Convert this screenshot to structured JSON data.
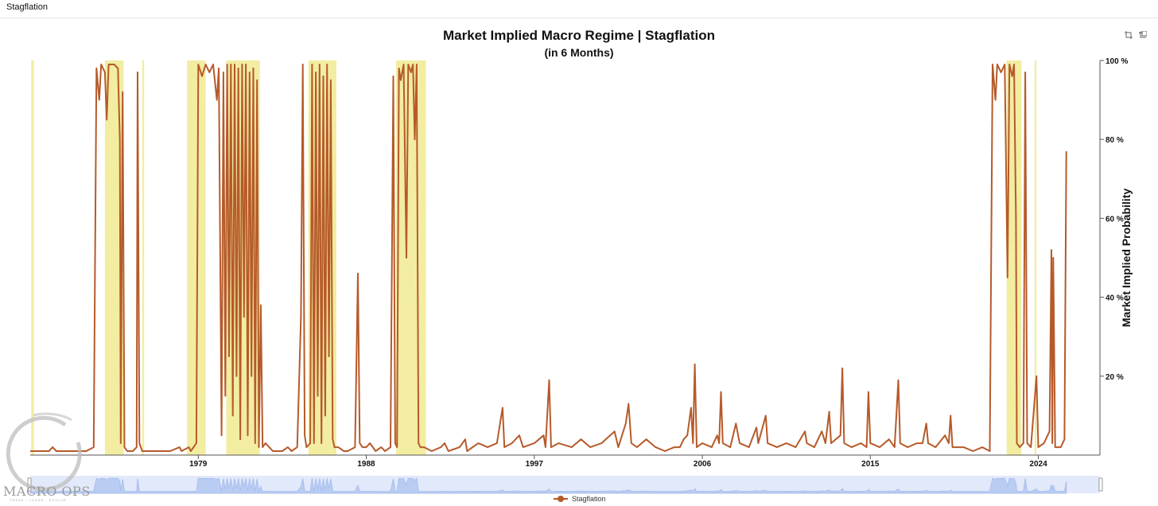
{
  "tab": {
    "label": "Stagflation"
  },
  "chart_data": {
    "type": "line",
    "title": "Market Implied Macro Regime | Stagflation",
    "subtitle": "(in 6 Months)",
    "ylabel": "Market Implied Probability",
    "ylim": [
      0,
      100
    ],
    "xlim": [
      1970,
      2027.3
    ],
    "x_tick_labels": [
      "1979",
      "1988",
      "1997",
      "2006",
      "2015",
      "2024"
    ],
    "y_tick_labels": [
      "20 %",
      "40 %",
      "60 %",
      "80 %",
      "100 %"
    ],
    "grid": false,
    "legend_position": "bottom-center",
    "series": [
      {
        "name": "Stagflation",
        "color": "#b65a2a",
        "points": [
          [
            1970.0,
            1
          ],
          [
            1970.5,
            1
          ],
          [
            1971.0,
            1
          ],
          [
            1971.2,
            2
          ],
          [
            1971.4,
            1
          ],
          [
            1971.8,
            1
          ],
          [
            1972.5,
            1
          ],
          [
            1973.0,
            1
          ],
          [
            1973.4,
            2
          ],
          [
            1973.55,
            98
          ],
          [
            1973.7,
            90
          ],
          [
            1973.8,
            99
          ],
          [
            1974.0,
            97
          ],
          [
            1974.1,
            85
          ],
          [
            1974.2,
            99
          ],
          [
            1974.5,
            99
          ],
          [
            1974.7,
            98
          ],
          [
            1974.8,
            80
          ],
          [
            1974.85,
            3
          ],
          [
            1974.95,
            92
          ],
          [
            1975.05,
            2
          ],
          [
            1975.2,
            1
          ],
          [
            1975.5,
            1
          ],
          [
            1975.7,
            2
          ],
          [
            1975.75,
            97
          ],
          [
            1975.85,
            3
          ],
          [
            1976.0,
            1
          ],
          [
            1976.5,
            1
          ],
          [
            1977.0,
            1
          ],
          [
            1977.5,
            1
          ],
          [
            1978.0,
            2
          ],
          [
            1978.1,
            1
          ],
          [
            1978.5,
            2
          ],
          [
            1978.6,
            1
          ],
          [
            1978.9,
            3
          ],
          [
            1979.0,
            99
          ],
          [
            1979.2,
            96
          ],
          [
            1979.4,
            99
          ],
          [
            1979.6,
            97
          ],
          [
            1979.8,
            99
          ],
          [
            1980.0,
            90
          ],
          [
            1980.1,
            98
          ],
          [
            1980.25,
            5
          ],
          [
            1980.35,
            97
          ],
          [
            1980.45,
            15
          ],
          [
            1980.55,
            99
          ],
          [
            1980.65,
            25
          ],
          [
            1980.75,
            99
          ],
          [
            1980.85,
            10
          ],
          [
            1980.95,
            99
          ],
          [
            1981.05,
            20
          ],
          [
            1981.15,
            98
          ],
          [
            1981.25,
            4
          ],
          [
            1981.35,
            99
          ],
          [
            1981.45,
            35
          ],
          [
            1981.55,
            99
          ],
          [
            1981.65,
            5
          ],
          [
            1981.75,
            97
          ],
          [
            1981.85,
            20
          ],
          [
            1981.95,
            98
          ],
          [
            1982.05,
            3
          ],
          [
            1982.15,
            95
          ],
          [
            1982.25,
            2
          ],
          [
            1982.35,
            38
          ],
          [
            1982.45,
            2
          ],
          [
            1982.6,
            3
          ],
          [
            1982.8,
            2
          ],
          [
            1983.0,
            1
          ],
          [
            1983.5,
            1
          ],
          [
            1983.8,
            2
          ],
          [
            1984.0,
            1
          ],
          [
            1984.3,
            2
          ],
          [
            1984.5,
            35
          ],
          [
            1984.6,
            99
          ],
          [
            1984.7,
            5
          ],
          [
            1984.8,
            2
          ],
          [
            1985.0,
            3
          ],
          [
            1985.1,
            99
          ],
          [
            1985.2,
            3
          ],
          [
            1985.3,
            97
          ],
          [
            1985.4,
            15
          ],
          [
            1985.5,
            99
          ],
          [
            1985.6,
            3
          ],
          [
            1985.7,
            96
          ],
          [
            1985.8,
            10
          ],
          [
            1985.9,
            99
          ],
          [
            1986.0,
            25
          ],
          [
            1986.1,
            95
          ],
          [
            1986.2,
            4
          ],
          [
            1986.3,
            2
          ],
          [
            1986.5,
            2
          ],
          [
            1986.8,
            1
          ],
          [
            1987.0,
            1
          ],
          [
            1987.4,
            2
          ],
          [
            1987.55,
            46
          ],
          [
            1987.65,
            3
          ],
          [
            1987.8,
            2
          ],
          [
            1988.0,
            2
          ],
          [
            1988.2,
            3
          ],
          [
            1988.5,
            1
          ],
          [
            1988.8,
            2
          ],
          [
            1989.0,
            1
          ],
          [
            1989.3,
            2
          ],
          [
            1989.45,
            96
          ],
          [
            1989.55,
            3
          ],
          [
            1989.65,
            2
          ],
          [
            1989.75,
            98
          ],
          [
            1989.85,
            95
          ],
          [
            1990.0,
            99
          ],
          [
            1990.15,
            50
          ],
          [
            1990.25,
            99
          ],
          [
            1990.4,
            97
          ],
          [
            1990.5,
            99
          ],
          [
            1990.6,
            80
          ],
          [
            1990.7,
            99
          ],
          [
            1990.8,
            3
          ],
          [
            1990.9,
            2
          ],
          [
            1991.1,
            2
          ],
          [
            1991.5,
            1
          ],
          [
            1992.0,
            2
          ],
          [
            1992.2,
            3
          ],
          [
            1992.4,
            1
          ],
          [
            1993.0,
            2
          ],
          [
            1993.3,
            4
          ],
          [
            1993.4,
            1
          ],
          [
            1994.0,
            3
          ],
          [
            1994.5,
            2
          ],
          [
            1995.0,
            3
          ],
          [
            1995.3,
            12
          ],
          [
            1995.4,
            2
          ],
          [
            1995.8,
            3
          ],
          [
            1996.2,
            5
          ],
          [
            1996.4,
            2
          ],
          [
            1997.0,
            3
          ],
          [
            1997.5,
            5
          ],
          [
            1997.6,
            2
          ],
          [
            1997.8,
            19
          ],
          [
            1997.9,
            2
          ],
          [
            1998.3,
            3
          ],
          [
            1999.0,
            2
          ],
          [
            1999.5,
            4
          ],
          [
            2000.0,
            2
          ],
          [
            2000.6,
            3
          ],
          [
            2001.3,
            6
          ],
          [
            2001.5,
            2
          ],
          [
            2001.9,
            8
          ],
          [
            2002.05,
            13
          ],
          [
            2002.2,
            3
          ],
          [
            2002.5,
            2
          ],
          [
            2003.0,
            4
          ],
          [
            2003.5,
            2
          ],
          [
            2004.0,
            1
          ],
          [
            2004.5,
            2
          ],
          [
            2004.8,
            2
          ],
          [
            2005.0,
            4
          ],
          [
            2005.2,
            5
          ],
          [
            2005.4,
            12
          ],
          [
            2005.5,
            3
          ],
          [
            2005.6,
            23
          ],
          [
            2005.7,
            2
          ],
          [
            2006.0,
            3
          ],
          [
            2006.5,
            2
          ],
          [
            2006.8,
            5
          ],
          [
            2006.9,
            3
          ],
          [
            2007.0,
            16
          ],
          [
            2007.1,
            3
          ],
          [
            2007.5,
            2
          ],
          [
            2007.8,
            8
          ],
          [
            2008.0,
            3
          ],
          [
            2008.5,
            2
          ],
          [
            2008.9,
            7
          ],
          [
            2009.0,
            3
          ],
          [
            2009.4,
            10
          ],
          [
            2009.5,
            3
          ],
          [
            2010.0,
            2
          ],
          [
            2010.5,
            3
          ],
          [
            2011.0,
            2
          ],
          [
            2011.5,
            6
          ],
          [
            2011.6,
            3
          ],
          [
            2012.0,
            2
          ],
          [
            2012.4,
            6
          ],
          [
            2012.6,
            3
          ],
          [
            2012.8,
            11
          ],
          [
            2012.9,
            3
          ],
          [
            2013.4,
            5
          ],
          [
            2013.5,
            22
          ],
          [
            2013.6,
            3
          ],
          [
            2014.0,
            2
          ],
          [
            2014.5,
            3
          ],
          [
            2014.8,
            2
          ],
          [
            2014.9,
            16
          ],
          [
            2015.0,
            3
          ],
          [
            2015.5,
            2
          ],
          [
            2016.0,
            4
          ],
          [
            2016.3,
            2
          ],
          [
            2016.5,
            19
          ],
          [
            2016.6,
            3
          ],
          [
            2017.0,
            2
          ],
          [
            2017.5,
            3
          ],
          [
            2017.8,
            3
          ],
          [
            2018.0,
            8
          ],
          [
            2018.1,
            3
          ],
          [
            2018.5,
            2
          ],
          [
            2019.0,
            5
          ],
          [
            2019.2,
            3
          ],
          [
            2019.3,
            10
          ],
          [
            2019.4,
            2
          ],
          [
            2020.0,
            2
          ],
          [
            2020.5,
            1
          ],
          [
            2021.0,
            2
          ],
          [
            2021.4,
            1
          ],
          [
            2021.55,
            99
          ],
          [
            2021.7,
            90
          ],
          [
            2021.8,
            99
          ],
          [
            2022.0,
            97
          ],
          [
            2022.2,
            99
          ],
          [
            2022.35,
            45
          ],
          [
            2022.45,
            99
          ],
          [
            2022.6,
            96
          ],
          [
            2022.7,
            99
          ],
          [
            2022.8,
            60
          ],
          [
            2022.85,
            3
          ],
          [
            2023.0,
            2
          ],
          [
            2023.2,
            3
          ],
          [
            2023.3,
            97
          ],
          [
            2023.4,
            3
          ],
          [
            2023.6,
            2
          ],
          [
            2023.9,
            20
          ],
          [
            2024.0,
            2
          ],
          [
            2024.3,
            3
          ],
          [
            2024.6,
            6
          ],
          [
            2024.7,
            52
          ],
          [
            2024.75,
            3
          ],
          [
            2024.8,
            50
          ],
          [
            2024.9,
            2
          ],
          [
            2025.2,
            2
          ],
          [
            2025.4,
            4
          ],
          [
            2025.5,
            77
          ]
        ]
      }
    ],
    "shaded_regimes": [
      [
        1970.05,
        1970.2
      ],
      [
        1974.0,
        1975.0
      ],
      [
        1976.0,
        1976.1
      ],
      [
        1978.4,
        1979.4
      ],
      [
        1980.5,
        1982.3
      ],
      [
        1984.9,
        1986.4
      ],
      [
        1989.6,
        1991.2
      ],
      [
        2022.3,
        2023.1
      ],
      [
        2023.8,
        2023.9
      ]
    ],
    "colors": {
      "line": "#b65a2a",
      "shade": "#f1ec9c",
      "navigator": "#cfdbf6",
      "navigator_line": "#a9bfee"
    }
  },
  "legend": {
    "label": "Stagflation"
  },
  "watermark": {
    "brand": "MACRO OPS",
    "tagline": "TRADE · LEARN · EVOLVE"
  },
  "icons": {
    "zoom": "crop-icon",
    "restore": "restore-icon"
  }
}
